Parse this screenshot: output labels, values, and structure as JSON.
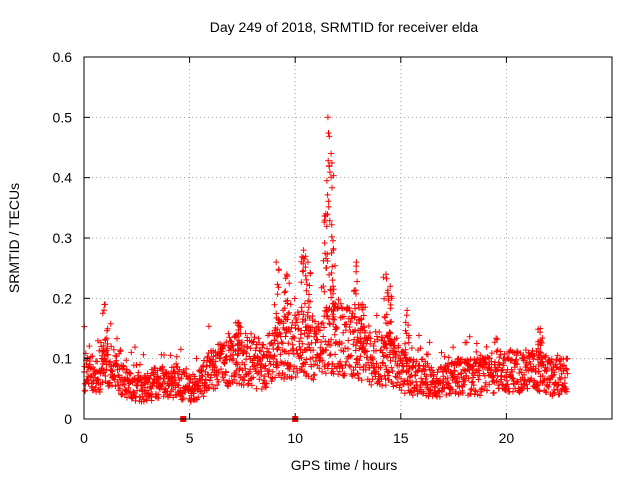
{
  "chart_data": {
    "type": "scatter",
    "title": "Day 249 of 2018, SRMTID for receiver elda",
    "xlabel": "GPS time / hours",
    "ylabel": "SRMTID / TECUs",
    "xlim": [
      0,
      25
    ],
    "ylim": [
      0,
      0.6
    ],
    "x_ticks": [
      "0",
      "5",
      "10",
      "15",
      "20"
    ],
    "y_ticks": [
      "0",
      "0.1",
      "0.2",
      "0.3",
      "0.4",
      "0.5",
      "0.6"
    ],
    "grid": true,
    "marker": "+",
    "color": "#ff0000",
    "series": [
      {
        "name": "SRMTID",
        "approximate_profile": [
          [
            0.0,
            0.08
          ],
          [
            0.5,
            0.07
          ],
          [
            1.0,
            0.09
          ],
          [
            1.5,
            0.08
          ],
          [
            2.0,
            0.06
          ],
          [
            2.5,
            0.05
          ],
          [
            3.0,
            0.05
          ],
          [
            3.5,
            0.06
          ],
          [
            4.0,
            0.06
          ],
          [
            4.5,
            0.06
          ],
          [
            5.0,
            0.05
          ],
          [
            5.5,
            0.06
          ],
          [
            6.0,
            0.08
          ],
          [
            6.5,
            0.09
          ],
          [
            7.0,
            0.1
          ],
          [
            7.5,
            0.1
          ],
          [
            8.0,
            0.09
          ],
          [
            8.5,
            0.09
          ],
          [
            9.0,
            0.11
          ],
          [
            9.5,
            0.12
          ],
          [
            10.0,
            0.12
          ],
          [
            10.5,
            0.13
          ],
          [
            11.0,
            0.11
          ],
          [
            11.5,
            0.14
          ],
          [
            12.0,
            0.13
          ],
          [
            12.5,
            0.13
          ],
          [
            13.0,
            0.12
          ],
          [
            13.5,
            0.1
          ],
          [
            14.0,
            0.1
          ],
          [
            14.5,
            0.1
          ],
          [
            15.0,
            0.08
          ],
          [
            15.5,
            0.07
          ],
          [
            16.0,
            0.07
          ],
          [
            16.5,
            0.06
          ],
          [
            17.0,
            0.06
          ],
          [
            17.5,
            0.07
          ],
          [
            18.0,
            0.07
          ],
          [
            18.5,
            0.07
          ],
          [
            19.0,
            0.07
          ],
          [
            19.5,
            0.08
          ],
          [
            20.0,
            0.08
          ],
          [
            20.5,
            0.08
          ],
          [
            21.0,
            0.08
          ],
          [
            21.5,
            0.08
          ],
          [
            22.0,
            0.07
          ],
          [
            22.5,
            0.07
          ],
          [
            22.9,
            0.07
          ]
        ],
        "peaks": [
          [
            1.0,
            0.19
          ],
          [
            7.3,
            0.16
          ],
          [
            9.1,
            0.26
          ],
          [
            9.6,
            0.24
          ],
          [
            10.4,
            0.28
          ],
          [
            10.6,
            0.26
          ],
          [
            11.45,
            0.34
          ],
          [
            11.55,
            0.5
          ],
          [
            11.7,
            0.44
          ],
          [
            11.8,
            0.28
          ],
          [
            12.9,
            0.26
          ],
          [
            13.2,
            0.19
          ],
          [
            14.3,
            0.24
          ],
          [
            14.5,
            0.22
          ],
          [
            15.3,
            0.18
          ],
          [
            21.6,
            0.15
          ]
        ],
        "zero_values": [
          [
            4.7,
            0.0
          ],
          [
            10.0,
            0.0
          ]
        ]
      }
    ]
  }
}
